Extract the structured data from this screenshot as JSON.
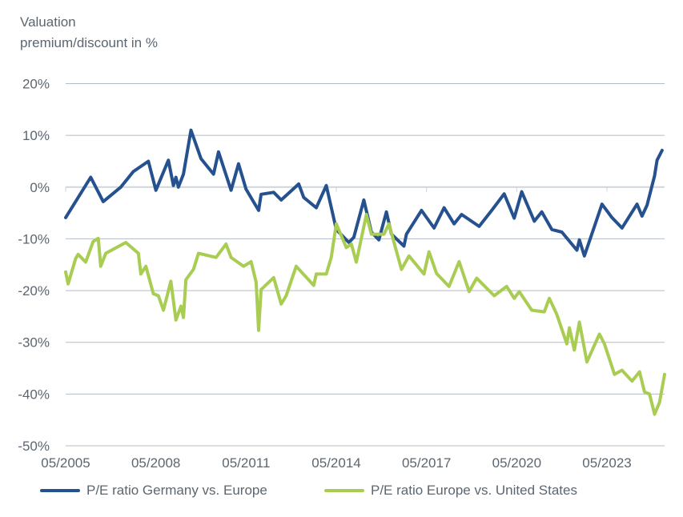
{
  "chart_data": {
    "type": "line",
    "title": "",
    "ylabel_lines": [
      "Valuation",
      "premium/discount in %"
    ],
    "xlabel": "",
    "ylim": [
      -50,
      20
    ],
    "xlim": [
      "2005-05",
      "2025-04"
    ],
    "y_ticks": [
      20,
      10,
      0,
      -10,
      -20,
      -30,
      -40,
      -50
    ],
    "y_tick_labels": [
      "20%",
      "10%",
      "0%",
      "-10%",
      "-20%",
      "-30%",
      "-40%",
      "-50%"
    ],
    "x_ticks": [
      "2005-05",
      "2008-05",
      "2011-05",
      "2014-05",
      "2017-05",
      "2020-05",
      "2023-05"
    ],
    "x_tick_labels": [
      "05/2005",
      "05/2008",
      "05/2011",
      "05/2014",
      "05/2017",
      "05/2020",
      "05/2023"
    ],
    "grid": "horizontal",
    "legend_position": "bottom",
    "series": [
      {
        "name": "P/E ratio Germany vs. Europe",
        "color": "#26518f",
        "points": [
          [
            "2005-05",
            -5.9
          ],
          [
            "2006-03",
            1.9
          ],
          [
            "2006-08",
            -2.8
          ],
          [
            "2007-03",
            0
          ],
          [
            "2007-08",
            3
          ],
          [
            "2008-02",
            5
          ],
          [
            "2008-05",
            -0.6
          ],
          [
            "2008-10",
            5.2
          ],
          [
            "2008-12",
            0.3
          ],
          [
            "2009-01",
            1.9
          ],
          [
            "2009-02",
            0
          ],
          [
            "2009-04",
            2.5
          ],
          [
            "2009-07",
            11
          ],
          [
            "2009-11",
            5.5
          ],
          [
            "2010-04",
            2.5
          ],
          [
            "2010-06",
            6.8
          ],
          [
            "2010-11",
            -0.6
          ],
          [
            "2011-02",
            4.5
          ],
          [
            "2011-05",
            -0.4
          ],
          [
            "2011-10",
            -4.5
          ],
          [
            "2011-11",
            -1.4
          ],
          [
            "2012-04",
            -1
          ],
          [
            "2012-07",
            -2.5
          ],
          [
            "2013-02",
            0.6
          ],
          [
            "2013-04",
            -2
          ],
          [
            "2013-09",
            -4
          ],
          [
            "2014-01",
            0.3
          ],
          [
            "2014-05",
            -8.2
          ],
          [
            "2014-10",
            -10.7
          ],
          [
            "2014-12",
            -9.7
          ],
          [
            "2015-04",
            -2.5
          ],
          [
            "2015-07",
            -8.7
          ],
          [
            "2015-10",
            -10.2
          ],
          [
            "2016-01",
            -4.8
          ],
          [
            "2016-03",
            -9.1
          ],
          [
            "2016-08",
            -11.4
          ],
          [
            "2016-09",
            -9.1
          ],
          [
            "2017-03",
            -4.5
          ],
          [
            "2017-08",
            -7.9
          ],
          [
            "2017-12",
            -4
          ],
          [
            "2018-04",
            -7.1
          ],
          [
            "2018-07",
            -5.3
          ],
          [
            "2019-02",
            -7.6
          ],
          [
            "2019-07",
            -4.5
          ],
          [
            "2019-12",
            -1.3
          ],
          [
            "2020-04",
            -6
          ],
          [
            "2020-07",
            -0.9
          ],
          [
            "2020-12",
            -6.6
          ],
          [
            "2021-03",
            -4.8
          ],
          [
            "2021-07",
            -8.2
          ],
          [
            "2021-11",
            -8.7
          ],
          [
            "2022-05",
            -12.2
          ],
          [
            "2022-06",
            -10.2
          ],
          [
            "2022-08",
            -13.3
          ],
          [
            "2022-12",
            -7.6
          ],
          [
            "2023-03",
            -3.3
          ],
          [
            "2023-07",
            -5.9
          ],
          [
            "2023-11",
            -7.9
          ],
          [
            "2024-05",
            -3.3
          ],
          [
            "2024-07",
            -5.6
          ],
          [
            "2024-09",
            -3.5
          ],
          [
            "2024-12",
            2.2
          ],
          [
            "2025-01",
            5.2
          ],
          [
            "2025-03",
            7.1
          ]
        ]
      },
      {
        "name": "P/E ratio Europe vs. United States",
        "color": "#a9cd53",
        "points": [
          [
            "2005-05",
            -16.4
          ],
          [
            "2005-06",
            -18.7
          ],
          [
            "2005-09",
            -13.8
          ],
          [
            "2005-10",
            -13
          ],
          [
            "2006-01",
            -14.5
          ],
          [
            "2006-04",
            -10.5
          ],
          [
            "2006-06",
            -9.9
          ],
          [
            "2006-07",
            -15.3
          ],
          [
            "2006-09",
            -12.8
          ],
          [
            "2007-05",
            -10.7
          ],
          [
            "2007-10",
            -12.8
          ],
          [
            "2007-11",
            -16.8
          ],
          [
            "2008-01",
            -15.3
          ],
          [
            "2008-04",
            -20.6
          ],
          [
            "2008-06",
            -21
          ],
          [
            "2008-08",
            -23.8
          ],
          [
            "2008-11",
            -18.2
          ],
          [
            "2009-01",
            -25.7
          ],
          [
            "2009-03",
            -23
          ],
          [
            "2009-04",
            -25.2
          ],
          [
            "2009-05",
            -17.9
          ],
          [
            "2009-08",
            -15.9
          ],
          [
            "2009-10",
            -12.8
          ],
          [
            "2010-05",
            -13.6
          ],
          [
            "2010-09",
            -11
          ],
          [
            "2010-11",
            -13.6
          ],
          [
            "2011-04",
            -15.3
          ],
          [
            "2011-07",
            -14.4
          ],
          [
            "2011-09",
            -18.4
          ],
          [
            "2011-10",
            -27.7
          ],
          [
            "2011-11",
            -19.8
          ],
          [
            "2012-04",
            -17.5
          ],
          [
            "2012-07",
            -22.6
          ],
          [
            "2012-09",
            -21
          ],
          [
            "2013-01",
            -15.3
          ],
          [
            "2013-08",
            -19
          ],
          [
            "2013-09",
            -16.8
          ],
          [
            "2014-01",
            -16.8
          ],
          [
            "2014-03",
            -13.6
          ],
          [
            "2014-05",
            -7.1
          ],
          [
            "2014-09",
            -11.7
          ],
          [
            "2014-11",
            -11
          ],
          [
            "2015-01",
            -14.5
          ],
          [
            "2015-05",
            -5.3
          ],
          [
            "2015-07",
            -9.1
          ],
          [
            "2015-12",
            -9.1
          ],
          [
            "2016-02",
            -7.1
          ],
          [
            "2016-07",
            -15.9
          ],
          [
            "2016-10",
            -13.3
          ],
          [
            "2017-04",
            -16.8
          ],
          [
            "2017-06",
            -12.5
          ],
          [
            "2017-09",
            -16.7
          ],
          [
            "2018-02",
            -19.2
          ],
          [
            "2018-06",
            -14.4
          ],
          [
            "2018-10",
            -20.2
          ],
          [
            "2019-01",
            -17.6
          ],
          [
            "2019-08",
            -21
          ],
          [
            "2020-01",
            -19.2
          ],
          [
            "2020-04",
            -21.5
          ],
          [
            "2020-06",
            -20.2
          ],
          [
            "2020-11",
            -23.8
          ],
          [
            "2021-04",
            -24.1
          ],
          [
            "2021-06",
            -21.5
          ],
          [
            "2021-09",
            -24.6
          ],
          [
            "2022-01",
            -30.3
          ],
          [
            "2022-02",
            -27.2
          ],
          [
            "2022-04",
            -31.5
          ],
          [
            "2022-06",
            -26.1
          ],
          [
            "2022-09",
            -33.8
          ],
          [
            "2023-02",
            -28.4
          ],
          [
            "2023-04",
            -30.3
          ],
          [
            "2023-08",
            -36.2
          ],
          [
            "2023-11",
            -35.4
          ],
          [
            "2024-03",
            -37.5
          ],
          [
            "2024-06",
            -35.7
          ],
          [
            "2024-08",
            -39.6
          ],
          [
            "2024-10",
            -40
          ],
          [
            "2024-12",
            -43.9
          ],
          [
            "2025-02",
            -41.6
          ],
          [
            "2025-04",
            -36.2
          ]
        ]
      }
    ]
  }
}
